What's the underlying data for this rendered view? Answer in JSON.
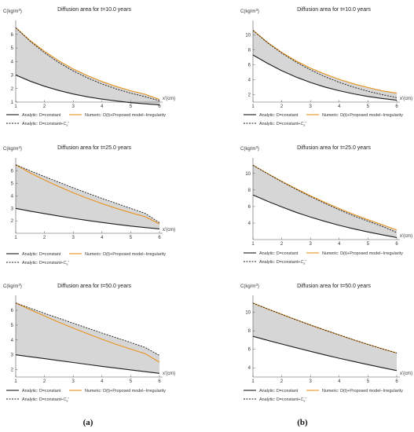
{
  "colors": {
    "analytic": "#1a1a1a",
    "numeric": "#e8931e",
    "analytic_cs": "#1a1a1a",
    "fill": "#d6d6d6"
  },
  "captions": {
    "a": "(a)",
    "b": "(b)"
  },
  "legend": {
    "analytic": "Analytic: D=constant",
    "numeric": "Numeric: D(t)+Proposed model–Irregularity",
    "analytic_cs": "Analytic: D=constant+Cs*"
  },
  "chart_data": [
    {
      "id": "a-t10",
      "type": "line",
      "title": "Diffusion area for t=10.0 years",
      "ylabel": "C(kg/m3)",
      "xlabel": "x'(cm)",
      "xlim": [
        1,
        6
      ],
      "ylim": [
        1,
        6.8
      ],
      "xticks": [
        1,
        2,
        3,
        4,
        5,
        6
      ],
      "yticks": [
        1,
        2,
        3,
        4,
        5,
        6
      ],
      "x": [
        1,
        1.5,
        2,
        2.5,
        3,
        3.5,
        4,
        4.5,
        5,
        5.5,
        6
      ],
      "series": [
        {
          "name": "Analytic: D=constant",
          "values": [
            3.0,
            2.55,
            2.17,
            1.86,
            1.6,
            1.39,
            1.22,
            1.08,
            0.96,
            0.87,
            0.8
          ]
        },
        {
          "name": "Numeric: D(t)+Proposed model–Irregularity",
          "values": [
            6.5,
            5.55,
            4.75,
            4.05,
            3.45,
            2.95,
            2.52,
            2.15,
            1.84,
            1.58,
            1.2
          ]
        },
        {
          "name": "Analytic: D=constant+Cs*",
          "values": [
            6.5,
            5.5,
            4.65,
            3.92,
            3.3,
            2.78,
            2.34,
            1.97,
            1.66,
            1.4,
            1.1
          ]
        }
      ]
    },
    {
      "id": "b-t10",
      "type": "line",
      "title": "Diffusion area for t=10.0 years",
      "ylabel": "C(kg/m3)",
      "xlabel": "x'(cm)",
      "xlim": [
        1,
        6
      ],
      "ylim": [
        1,
        11.5
      ],
      "xticks": [
        1,
        2,
        3,
        4,
        5,
        6
      ],
      "yticks": [
        2,
        4,
        6,
        8,
        10
      ],
      "x": [
        1,
        1.5,
        2,
        2.5,
        3,
        3.5,
        4,
        4.5,
        5,
        5.5,
        6
      ],
      "series": [
        {
          "name": "Analytic: D=constant",
          "values": [
            7.3,
            6.2,
            5.2,
            4.35,
            3.62,
            3.02,
            2.52,
            2.1,
            1.76,
            1.48,
            1.25
          ]
        },
        {
          "name": "Numeric: D(t)+Proposed model–Irregularity",
          "values": [
            10.6,
            9.0,
            7.65,
            6.5,
            5.55,
            4.75,
            4.05,
            3.45,
            2.95,
            2.5,
            2.2
          ]
        },
        {
          "name": "Analytic: D=constant+Cs*",
          "values": [
            10.6,
            8.95,
            7.55,
            6.35,
            5.3,
            4.4,
            3.65,
            3.0,
            2.45,
            2.0,
            1.6
          ]
        }
      ]
    },
    {
      "id": "a-t25",
      "type": "line",
      "title": "Diffusion area for t=25.0 years",
      "ylabel": "C(kg/m3)",
      "xlabel": "x'(cm)",
      "xlim": [
        1,
        6
      ],
      "ylim": [
        1,
        6.8
      ],
      "xticks": [
        1,
        2,
        3,
        4,
        5,
        6
      ],
      "yticks": [
        2,
        3,
        4,
        5,
        6
      ],
      "x": [
        1,
        1.5,
        2,
        2.5,
        3,
        3.5,
        4,
        4.5,
        5,
        5.5,
        6
      ],
      "series": [
        {
          "name": "Analytic: D=constant",
          "values": [
            3.0,
            2.78,
            2.58,
            2.38,
            2.2,
            2.03,
            1.87,
            1.72,
            1.58,
            1.46,
            1.35
          ]
        },
        {
          "name": "Numeric: D(t)+Proposed model–Irregularity",
          "values": [
            6.5,
            5.85,
            5.28,
            4.75,
            4.25,
            3.8,
            3.38,
            3.0,
            2.65,
            2.33,
            1.75
          ]
        },
        {
          "name": "Analytic: D=constant+Cs*",
          "values": [
            6.5,
            6.02,
            5.55,
            5.1,
            4.65,
            4.22,
            3.8,
            3.4,
            3.0,
            2.6,
            1.85
          ]
        }
      ]
    },
    {
      "id": "b-t25",
      "type": "line",
      "title": "Diffusion area for t=25.0 years",
      "ylabel": "C(kg/m3)",
      "xlabel": "x'(cm)",
      "xlim": [
        1,
        6
      ],
      "ylim": [
        2,
        11.5
      ],
      "xticks": [
        1,
        2,
        3,
        4,
        5,
        6
      ],
      "yticks": [
        4,
        6,
        8,
        10
      ],
      "x": [
        1,
        1.5,
        2,
        2.5,
        3,
        3.5,
        4,
        4.5,
        5,
        5.5,
        6
      ],
      "series": [
        {
          "name": "Analytic: D=constant",
          "values": [
            7.4,
            6.65,
            5.95,
            5.3,
            4.72,
            4.2,
            3.72,
            3.3,
            2.92,
            2.58,
            2.25
          ]
        },
        {
          "name": "Numeric: D(t)+Proposed model–Irregularity",
          "values": [
            11.0,
            10.0,
            9.05,
            8.15,
            7.3,
            6.5,
            5.75,
            5.05,
            4.4,
            3.8,
            3.15
          ]
        },
        {
          "name": "Analytic: D=constant+Cs*",
          "values": [
            11.0,
            9.98,
            9.0,
            8.08,
            7.2,
            6.38,
            5.6,
            4.88,
            4.22,
            3.6,
            2.85
          ]
        }
      ]
    },
    {
      "id": "a-t50",
      "type": "line",
      "title": "Diffusion area for t=50.0 years",
      "ylabel": "C(kg/m3)",
      "xlabel": "x'(cm)",
      "xlim": [
        1,
        6
      ],
      "ylim": [
        1.5,
        6.8
      ],
      "xticks": [
        1,
        2,
        3,
        4,
        5,
        6
      ],
      "yticks": [
        2,
        3,
        4,
        5,
        6
      ],
      "x": [
        1,
        1.5,
        2,
        2.5,
        3,
        3.5,
        4,
        4.5,
        5,
        5.5,
        6
      ],
      "series": [
        {
          "name": "Analytic: D=constant",
          "values": [
            3.0,
            2.87,
            2.74,
            2.61,
            2.48,
            2.35,
            2.22,
            2.1,
            1.98,
            1.86,
            1.75
          ]
        },
        {
          "name": "Numeric: D(t)+Proposed model–Irregularity",
          "values": [
            6.5,
            6.05,
            5.62,
            5.2,
            4.8,
            4.42,
            4.05,
            3.7,
            3.38,
            3.08,
            2.5
          ]
        },
        {
          "name": "Analytic: D=constant+Cs*",
          "values": [
            6.5,
            6.15,
            5.8,
            5.47,
            5.13,
            4.8,
            4.47,
            4.15,
            3.83,
            3.5,
            2.95
          ]
        }
      ]
    },
    {
      "id": "b-t50",
      "type": "line",
      "title": "Diffusion area for t=50.0 years",
      "ylabel": "C(kg/m3)",
      "xlabel": "x'(cm)",
      "xlim": [
        1,
        6
      ],
      "ylim": [
        3,
        11.5
      ],
      "xticks": [
        1,
        2,
        3,
        4,
        5,
        6
      ],
      "yticks": [
        4,
        6,
        8,
        10
      ],
      "x": [
        1,
        1.5,
        2,
        2.5,
        3,
        3.5,
        4,
        4.5,
        5,
        5.5,
        6
      ],
      "series": [
        {
          "name": "Analytic: D=constant",
          "values": [
            7.4,
            6.98,
            6.57,
            6.17,
            5.78,
            5.4,
            5.03,
            4.68,
            4.34,
            4.01,
            3.7
          ]
        },
        {
          "name": "Numeric: D(t)+Proposed model–Irregularity",
          "values": [
            11.0,
            10.38,
            9.78,
            9.2,
            8.63,
            8.08,
            7.55,
            7.03,
            6.53,
            6.05,
            5.6
          ]
        },
        {
          "name": "Analytic: D=constant+Cs*",
          "values": [
            11.0,
            10.38,
            9.78,
            9.2,
            8.63,
            8.08,
            7.55,
            7.03,
            6.53,
            6.05,
            5.6
          ]
        }
      ]
    }
  ]
}
